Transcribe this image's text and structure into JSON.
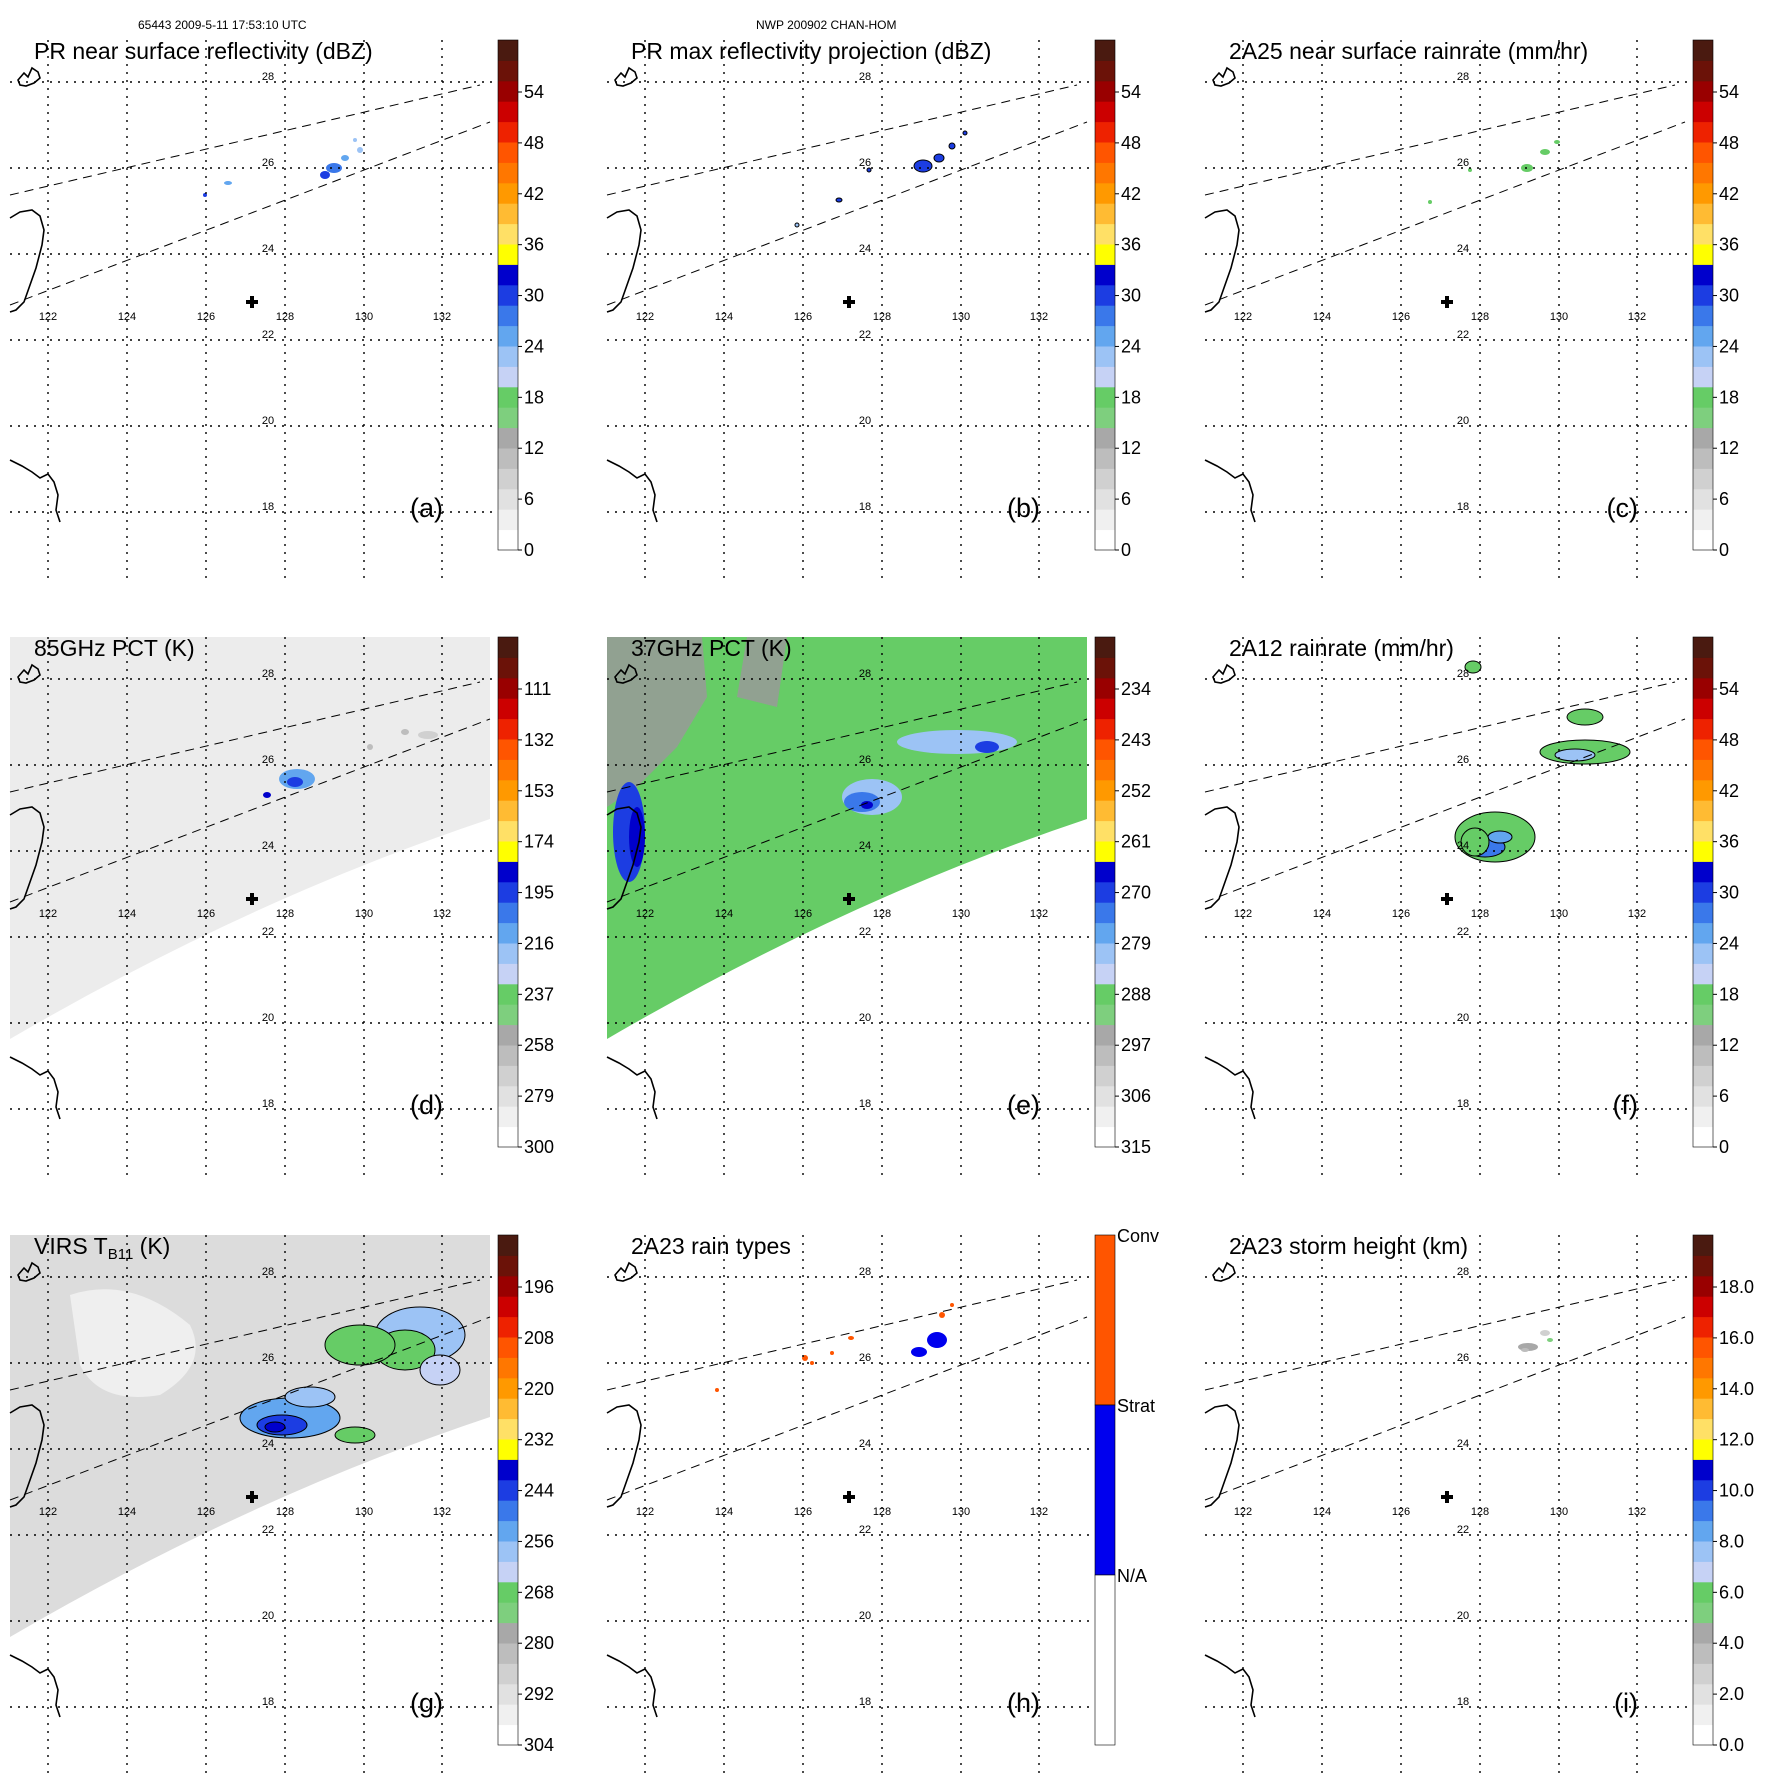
{
  "header": {
    "orbit_time": "65443 2009-5-11 17:53:10 UTC",
    "model": "NWP 200902 CHAN-HOM"
  },
  "axes": {
    "lon_ticks": [
      "122",
      "124",
      "126",
      "128",
      "130",
      "132"
    ],
    "lat_ticks": [
      "28",
      "26",
      "24",
      "22",
      "20",
      "18"
    ]
  },
  "colors": {
    "scale_palette": [
      "#ffffff",
      "#f0f0f0",
      "#e1e1e1",
      "#d0d0d0",
      "#bdbdbd",
      "#a8a8a8",
      "#7ecf7e",
      "#66cc66",
      "#c6d2f5",
      "#9cc3f5",
      "#62a6ef",
      "#3a78ea",
      "#1c3de2",
      "#0000cc",
      "#ffff00",
      "#ffe066",
      "#ffbb33",
      "#ff9900",
      "#ff7700",
      "#ff5500",
      "#ee2200",
      "#cc0000",
      "#990000",
      "#6b1208",
      "#4a1a10"
    ],
    "raintype_palette": [
      "#ffffff",
      "#0000ee",
      "#ff5500"
    ]
  },
  "panels": [
    {
      "id": "a",
      "title": "PR near surface reflectivity (dBZ)",
      "label": "(a)",
      "colorbar": [
        "54",
        "48",
        "42",
        "36",
        "30",
        "24",
        "18",
        "12",
        "6",
        "0"
      ]
    },
    {
      "id": "b",
      "title": "PR max reflectivity projection (dBZ)",
      "label": "(b)",
      "colorbar": [
        "54",
        "48",
        "42",
        "36",
        "30",
        "24",
        "18",
        "12",
        "6",
        "0"
      ]
    },
    {
      "id": "c",
      "title": "2A25 near surface rainrate (mm/hr)",
      "label": "(c)",
      "colorbar": [
        "54",
        "48",
        "42",
        "36",
        "30",
        "24",
        "18",
        "12",
        "6",
        "0"
      ]
    },
    {
      "id": "d",
      "title": "85GHz PCT (K)",
      "label": "(d)",
      "colorbar": [
        "111",
        "132",
        "153",
        "174",
        "195",
        "216",
        "237",
        "258",
        "279",
        "300"
      ]
    },
    {
      "id": "e",
      "title": "37GHz PCT (K)",
      "label": "(e)",
      "colorbar": [
        "234",
        "243",
        "252",
        "261",
        "270",
        "279",
        "288",
        "297",
        "306",
        "315"
      ]
    },
    {
      "id": "f",
      "title": "2A12 rainrate (mm/hr)",
      "label": "(f)",
      "colorbar": [
        "54",
        "48",
        "42",
        "36",
        "30",
        "24",
        "18",
        "12",
        "6",
        "0"
      ]
    },
    {
      "id": "g",
      "title": "VIRS T",
      "title_sub": "B11",
      "title_suffix": " (K)",
      "label": "(g)",
      "colorbar": [
        "196",
        "208",
        "220",
        "232",
        "244",
        "256",
        "268",
        "280",
        "292",
        "304"
      ]
    },
    {
      "id": "h",
      "title": "2A23 rain types",
      "label": "(h)",
      "colorbar": [
        "Conv",
        "Strat",
        "N/A"
      ]
    },
    {
      "id": "i",
      "title": "2A23 storm height (km)",
      "label": "(i)",
      "colorbar": [
        "18.0",
        "16.0",
        "14.0",
        "12.0",
        "10.0",
        "8.0",
        "6.0",
        "4.0",
        "2.0",
        "0.0"
      ]
    }
  ]
}
